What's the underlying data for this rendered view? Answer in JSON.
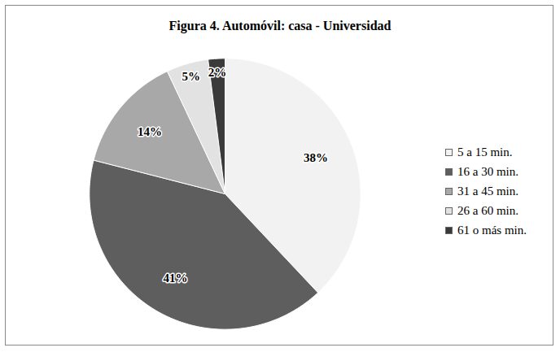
{
  "chart_data": {
    "type": "pie",
    "title": "Figura 4. Automóvil: casa - Universidad",
    "categories": [
      "5 a 15 min.",
      "16 a 30 min.",
      "31 a 45 min.",
      "26 a 60 min.",
      "61 o más min."
    ],
    "values": [
      38,
      41,
      14,
      5,
      2
    ],
    "value_labels": [
      "38%",
      "41%",
      "14%",
      "5%",
      "2%"
    ],
    "colors": [
      "#f2f2f2",
      "#5e5e5e",
      "#a8a8a8",
      "#e2e2e2",
      "#3a3a3a"
    ],
    "data_labels": true,
    "legend": "right"
  }
}
